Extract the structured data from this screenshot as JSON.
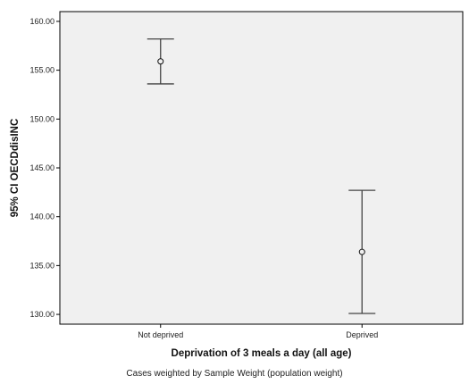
{
  "chart_data": {
    "type": "errorbar",
    "x_label": "Deprivation of 3 meals a day (all age)",
    "y_label": "95% CI OECDdisINC",
    "y_ticks": [
      "160.00",
      "155.00",
      "150.00",
      "145.00",
      "140.00",
      "135.00",
      "130.00"
    ],
    "ylim": [
      129.0,
      161.0
    ],
    "grid": false,
    "categories": [
      "Not deprived",
      "Deprived"
    ],
    "points": [
      {
        "category": "Not deprived",
        "mean": 155.9,
        "lower": 153.6,
        "upper": 158.2
      },
      {
        "category": "Deprived",
        "mean": 136.4,
        "lower": 130.1,
        "upper": 142.7
      }
    ],
    "footnote": "Cases weighted by Sample Weight (population weight)",
    "colors": {
      "plot_background": "#f0f0f0",
      "axis": "#000000",
      "bar": "#444444"
    }
  }
}
